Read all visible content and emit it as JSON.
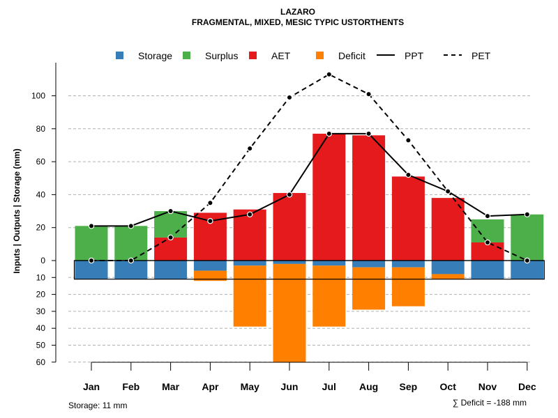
{
  "chart_data": {
    "type": "water-balance",
    "title": "LAZARO",
    "subtitle": "FRAGMENTAL, MIXED, MESIC TYPIC USTORTHENTS",
    "ylabel": "Inputs | Outputs | Storage    (mm)",
    "categories": [
      "Jan",
      "Feb",
      "Mar",
      "Apr",
      "May",
      "Jun",
      "Jul",
      "Aug",
      "Sep",
      "Oct",
      "Nov",
      "Dec"
    ],
    "upper_ticks": [
      "0",
      "20",
      "40",
      "60",
      "80",
      "100"
    ],
    "lower_ticks": [
      "10",
      "20",
      "30",
      "40",
      "50",
      "60"
    ],
    "ylim_upper": [
      0,
      115
    ],
    "ylim_lower": [
      0,
      60
    ],
    "legend": {
      "storage": "Storage",
      "surplus": "Surplus",
      "aet": "AET",
      "deficit": "Deficit",
      "ppt": "PPT",
      "pet": "PET"
    },
    "colors": {
      "storage": "#377EB8",
      "surplus": "#4DAF4A",
      "aet": "#E41A1C",
      "deficit": "#FF7F00",
      "grid": "#b0b0b0"
    },
    "series": {
      "ppt": [
        21,
        21,
        30,
        24,
        28,
        40,
        77,
        77,
        52,
        42,
        27,
        28
      ],
      "pet": [
        0,
        0,
        14,
        35,
        68,
        99,
        113,
        101,
        73,
        42,
        11,
        0
      ],
      "aet": [
        0,
        0,
        14,
        29,
        31,
        41,
        77,
        76,
        51,
        38,
        11,
        0
      ],
      "surplus": [
        21,
        21,
        16,
        0,
        0,
        0,
        0,
        0,
        0,
        0,
        14,
        28
      ],
      "storage": [
        11,
        11,
        11,
        6,
        3,
        2,
        3,
        4,
        4,
        8,
        11,
        11
      ],
      "deficit": [
        0,
        0,
        0,
        6,
        36,
        58,
        36,
        25,
        23,
        3,
        0,
        0
      ],
      "storage_level": 11
    },
    "storage_note": "Storage: 11 mm",
    "deficit_note": "∑ Deficit = -188 mm"
  }
}
